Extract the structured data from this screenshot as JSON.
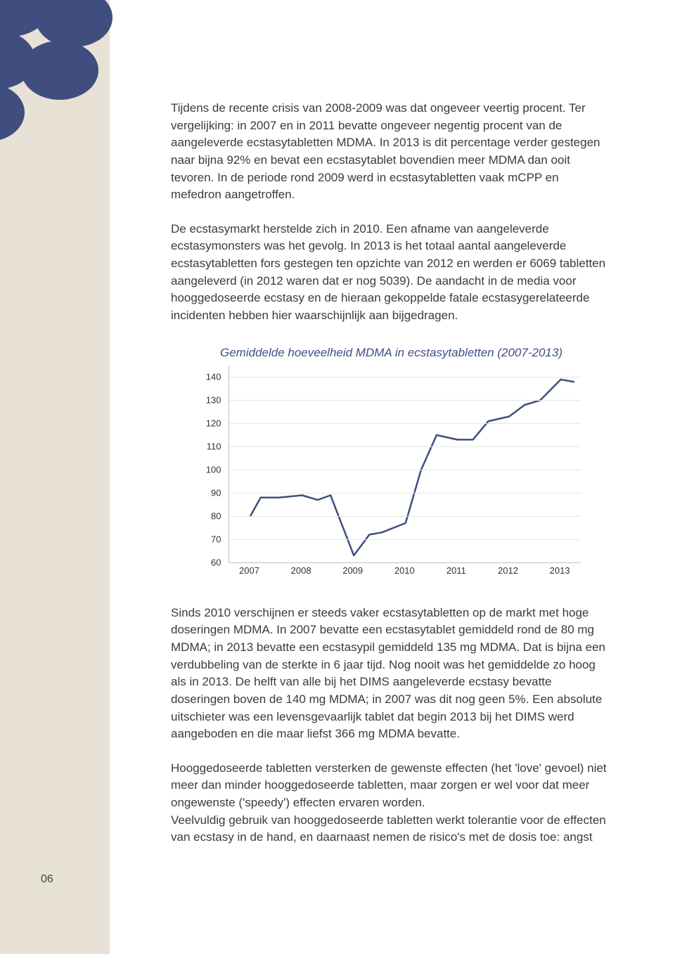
{
  "page_number": "06",
  "decor": {
    "bubble_color": "#3f4e7e",
    "strip_color": "#e7e2d5"
  },
  "paragraphs": {
    "p1": "Tijdens de recente crisis van 2008-2009 was dat ongeveer veertig procent. Ter vergelijking: in 2007 en in 2011 bevatte ongeveer negentig procent van de aangeleverde ecstasytabletten MDMA. In 2013 is dit percentage verder gestegen naar bijna 92% en bevat een ecstasytablet bovendien meer MDMA dan ooit tevoren. In de periode rond 2009 werd in ecstasytabletten vaak mCPP en mefedron aangetroffen.",
    "p2": "De ecstasymarkt herstelde zich in 2010. Een afname van aangeleverde ecstasymonsters was het gevolg. In 2013 is het totaal aantal aangeleverde ecstasytabletten fors gestegen ten opzichte van 2012 en werden er 6069 tabletten aangeleverd (in 2012 waren dat er nog 5039). De aandacht in de media voor hooggedoseerde ecstasy en de hieraan gekoppelde fatale ecstasygerelateerde incidenten hebben hier waarschijnlijk aan bijgedragen.",
    "p3": "Sinds 2010 verschijnen er steeds vaker ecstasytabletten op de markt met hoge doseringen MDMA. In 2007 bevatte een ecstasytablet gemiddeld rond de 80 mg MDMA; in 2013 bevatte een ecstasypil gemiddeld 135 mg MDMA. Dat is bijna een verdubbeling van de sterkte in 6 jaar tijd. Nog nooit was het gemiddelde zo hoog als in 2013. De helft van alle bij het DIMS aangeleverde ecstasy bevatte doseringen boven de 140 mg MDMA; in 2007 was dit nog geen 5%. Een absolute uitschieter was een levensgevaarlijk tablet dat begin 2013 bij het DIMS werd aangeboden en die maar liefst 366 mg MDMA bevatte.",
    "p4": "Hooggedoseerde tabletten versterken de gewenste effecten (het 'love' gevoel) niet meer dan minder hooggedoseerde tabletten, maar zorgen er wel voor dat meer ongewenste ('speedy') effecten ervaren worden.\nVeelvuldig gebruik van hooggedoseerde tabletten werkt tolerantie voor de effecten van ecstasy in de hand, en daarnaast nemen de risico's met de dosis toe: angst"
  },
  "chart": {
    "title": "Gemiddelde hoeveelheid MDMA in ecstasytabletten (2007-2013)",
    "type": "line",
    "x_categories": [
      "2007",
      "2008",
      "2009",
      "2010",
      "2011",
      "2012",
      "2013"
    ],
    "y_ticks": [
      60,
      70,
      80,
      90,
      100,
      110,
      120,
      130,
      140
    ],
    "ylim": [
      60,
      145
    ],
    "line_color": "#3f4e7e",
    "line_width": 2.5,
    "grid_color": "#e6e6e6",
    "axis_color": "#bfbfbf",
    "background_color": "#ffffff",
    "label_fontsize": 13,
    "title_color": "#3f4f88",
    "title_fontsize": 17,
    "series": [
      {
        "x": 0.0,
        "y": 80
      },
      {
        "x": 0.2,
        "y": 88
      },
      {
        "x": 0.55,
        "y": 88
      },
      {
        "x": 1.0,
        "y": 89
      },
      {
        "x": 1.3,
        "y": 87
      },
      {
        "x": 1.55,
        "y": 89
      },
      {
        "x": 2.0,
        "y": 63
      },
      {
        "x": 2.3,
        "y": 72
      },
      {
        "x": 2.55,
        "y": 73
      },
      {
        "x": 3.0,
        "y": 77
      },
      {
        "x": 3.3,
        "y": 100
      },
      {
        "x": 3.6,
        "y": 115
      },
      {
        "x": 4.0,
        "y": 113
      },
      {
        "x": 4.3,
        "y": 113
      },
      {
        "x": 4.6,
        "y": 121
      },
      {
        "x": 5.0,
        "y": 123
      },
      {
        "x": 5.3,
        "y": 128
      },
      {
        "x": 5.6,
        "y": 130
      },
      {
        "x": 6.0,
        "y": 139
      },
      {
        "x": 6.25,
        "y": 138
      }
    ]
  }
}
